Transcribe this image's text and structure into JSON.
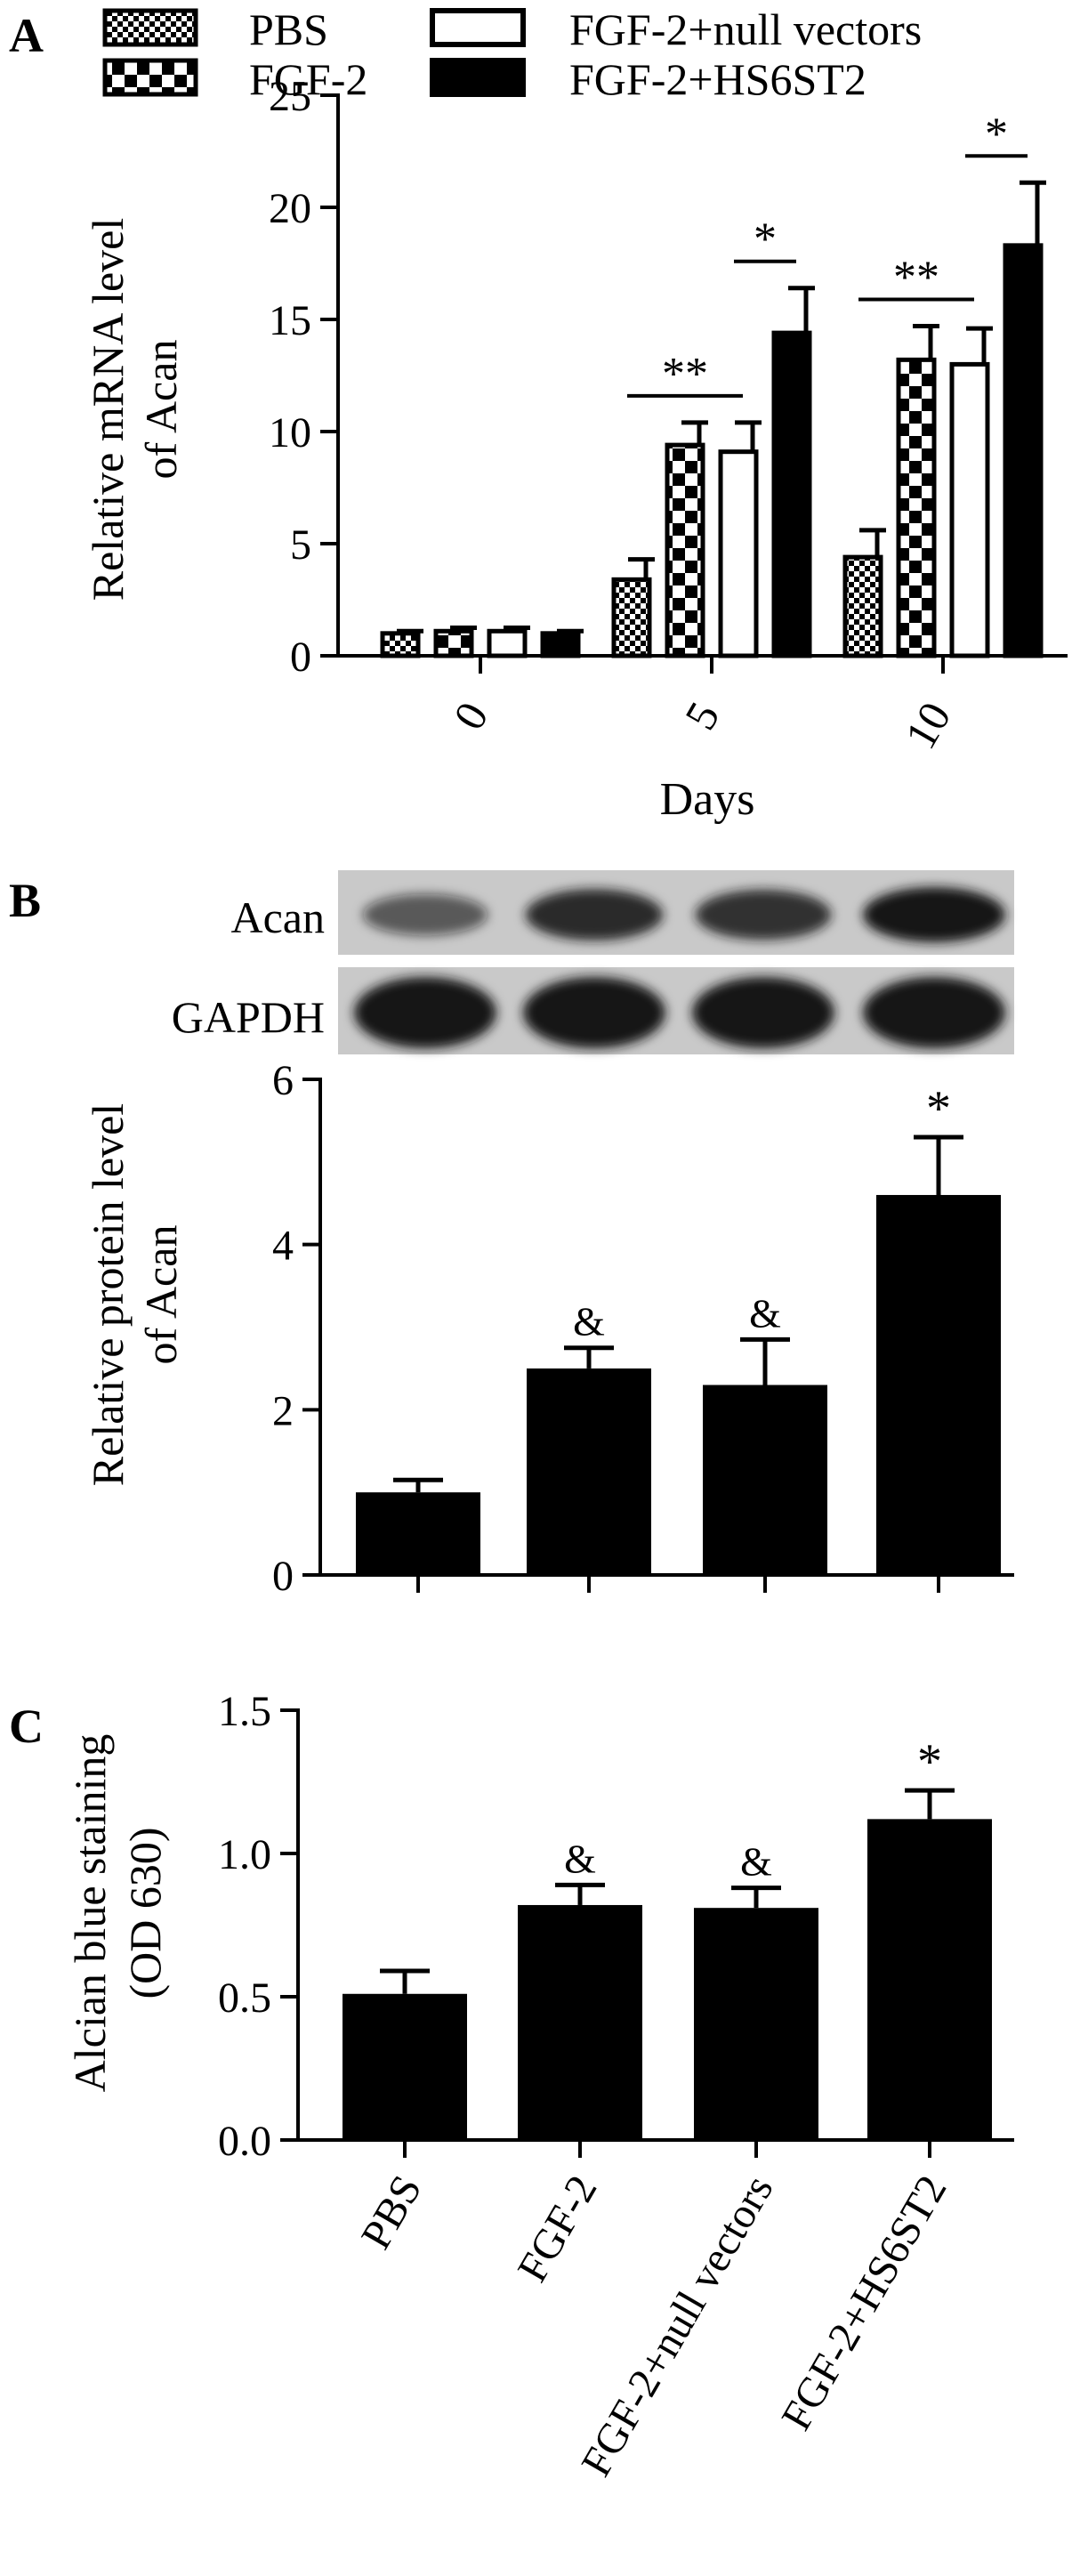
{
  "legend": [
    {
      "label": "PBS",
      "pattern": "fine-check"
    },
    {
      "label": "FGF-2",
      "pattern": "checker"
    },
    {
      "label": "FGF-2+null vectors",
      "pattern": "white"
    },
    {
      "label": "FGF-2+HS6ST2",
      "pattern": "black"
    }
  ],
  "colors": {
    "ink": "#000000",
    "blot_bg": "#c9c9c9",
    "band": "#141414"
  },
  "chart_data": [
    {
      "panel_label": "A",
      "type": "bar",
      "xlabel": "Days",
      "ylabel": "Relative mRNA level",
      "ylabel2": "of Acan",
      "categories": [
        "0",
        "5",
        "10"
      ],
      "ylim": [
        0,
        25
      ],
      "yticks": [
        "0",
        "5",
        "10",
        "15",
        "20",
        "25"
      ],
      "legend_placement": "top",
      "series": [
        {
          "name": "PBS",
          "values": [
            1.0,
            3.4,
            4.4
          ],
          "errors": [
            0.1,
            0.9,
            1.2
          ]
        },
        {
          "name": "FGF-2",
          "values": [
            1.1,
            9.4,
            13.2
          ],
          "errors": [
            0.15,
            1.0,
            1.5
          ]
        },
        {
          "name": "FGF-2+null vectors",
          "values": [
            1.1,
            9.1,
            13.0
          ],
          "errors": [
            0.15,
            1.3,
            1.6
          ]
        },
        {
          "name": "FGF-2+HS6ST2",
          "values": [
            1.0,
            14.4,
            18.3
          ],
          "errors": [
            0.1,
            2.0,
            2.8
          ]
        }
      ],
      "annotations": [
        {
          "text": "**",
          "category": "5",
          "from_series": 0,
          "to_series": 2
        },
        {
          "text": "*",
          "category": "5",
          "from_series": 2,
          "to_series": 3
        },
        {
          "text": "**",
          "category": "10",
          "from_series": 0,
          "to_series": 2
        },
        {
          "text": "*",
          "category": "10",
          "from_series": 2,
          "to_series": 3
        }
      ]
    },
    {
      "panel_label": "B",
      "type": "bar",
      "ylabel": "Relative protein level",
      "ylabel2": "of Acan",
      "categories": [
        "PBS",
        "FGF-2",
        "FGF-2+null vectors",
        "FGF-2+HS6ST2"
      ],
      "values": [
        1.0,
        2.5,
        2.3,
        4.6
      ],
      "errors": [
        0.15,
        0.25,
        0.55,
        0.7
      ],
      "labels": [
        "",
        "&",
        "&",
        "*"
      ],
      "ylim": [
        0,
        6
      ],
      "yticks": [
        "0",
        "2",
        "4",
        "6"
      ]
    },
    {
      "panel_label": "C",
      "type": "bar",
      "ylabel": "Alcian blue staining",
      "ylabel2": "(OD 630)",
      "categories": [
        "PBS",
        "FGF-2",
        "FGF-2+null vectors",
        "FGF-2+HS6ST2"
      ],
      "values": [
        0.51,
        0.82,
        0.81,
        1.12
      ],
      "errors": [
        0.08,
        0.07,
        0.07,
        0.1
      ],
      "labels": [
        "",
        "&",
        "&",
        "*"
      ],
      "ylim": [
        0,
        1.5
      ],
      "yticks": [
        "0.0",
        "0.5",
        "1.0",
        "1.5"
      ]
    }
  ],
  "blot": {
    "rows": [
      {
        "label": "Acan",
        "intensities": [
          0.45,
          0.85,
          0.8,
          1.0
        ]
      },
      {
        "label": "GAPDH",
        "intensities": [
          1.0,
          1.0,
          1.0,
          1.0
        ]
      }
    ]
  }
}
